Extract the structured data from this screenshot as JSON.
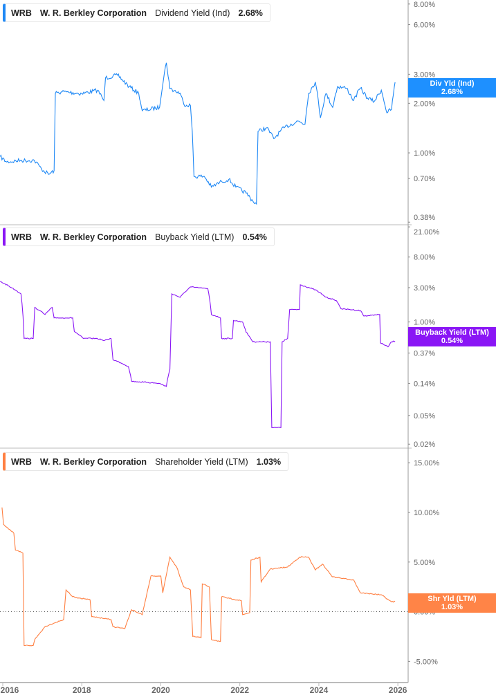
{
  "chart_data": [
    {
      "type": "line",
      "scale": "log",
      "legend": {
        "ticker": "WRB",
        "company": "W. R. Berkley Corporation",
        "metric": "Dividend Yield (Ind)",
        "value": "2.68%"
      },
      "tag": {
        "label": "Div Yld (Ind)",
        "value": "2.68%"
      },
      "color": "#1e88f5",
      "yticks": [
        {
          "v": 8,
          "label": "8.00%"
        },
        {
          "v": 6,
          "label": "6.00%"
        },
        {
          "v": 3,
          "label": "3.00%"
        },
        {
          "v": 2,
          "label": "2.00%"
        },
        {
          "v": 1,
          "label": "1.00%"
        },
        {
          "v": 0.7,
          "label": "0.70%"
        },
        {
          "v": 0.38,
          "label": "0.38%"
        }
      ],
      "ylim": [
        0.37,
        8.3
      ],
      "points": [
        [
          2015.93,
          0.95
        ],
        [
          2016.1,
          0.88
        ],
        [
          2016.45,
          0.9
        ],
        [
          2016.8,
          0.9
        ],
        [
          2016.98,
          0.8
        ],
        [
          2017.16,
          0.74
        ],
        [
          2017.3,
          0.78
        ],
        [
          2017.33,
          2.29
        ],
        [
          2017.5,
          2.35
        ],
        [
          2018.0,
          2.29
        ],
        [
          2018.4,
          2.4
        ],
        [
          2018.56,
          2.08
        ],
        [
          2018.6,
          2.85
        ],
        [
          2018.9,
          2.96
        ],
        [
          2019.2,
          2.52
        ],
        [
          2019.44,
          2.3
        ],
        [
          2019.53,
          1.8
        ],
        [
          2019.97,
          1.89
        ],
        [
          2020.14,
          3.52
        ],
        [
          2020.23,
          2.45
        ],
        [
          2020.49,
          2.3
        ],
        [
          2020.58,
          1.98
        ],
        [
          2020.75,
          1.94
        ],
        [
          2020.84,
          0.72
        ],
        [
          2021.1,
          0.72
        ],
        [
          2021.28,
          0.62
        ],
        [
          2021.54,
          0.67
        ],
        [
          2021.72,
          0.69
        ],
        [
          2021.9,
          0.62
        ],
        [
          2022.16,
          0.57
        ],
        [
          2022.33,
          0.51
        ],
        [
          2022.42,
          0.49
        ],
        [
          2022.46,
          1.35
        ],
        [
          2022.68,
          1.42
        ],
        [
          2022.86,
          1.22
        ],
        [
          2023.12,
          1.42
        ],
        [
          2023.47,
          1.56
        ],
        [
          2023.65,
          1.49
        ],
        [
          2023.74,
          2.29
        ],
        [
          2023.91,
          2.69
        ],
        [
          2024.04,
          1.63
        ],
        [
          2024.18,
          2.29
        ],
        [
          2024.35,
          1.89
        ],
        [
          2024.47,
          2.52
        ],
        [
          2024.7,
          2.47
        ],
        [
          2024.88,
          2.08
        ],
        [
          2025.05,
          2.47
        ],
        [
          2025.23,
          2.15
        ],
        [
          2025.4,
          2.05
        ],
        [
          2025.58,
          2.4
        ],
        [
          2025.72,
          1.75
        ],
        [
          2025.84,
          1.84
        ],
        [
          2025.93,
          2.68
        ]
      ]
    },
    {
      "type": "line",
      "scale": "log",
      "legend": {
        "ticker": "WRB",
        "company": "W. R. Berkley Corporation",
        "metric": "Buyback Yield (LTM)",
        "value": "0.54%"
      },
      "tag": {
        "label": "Buyback Yield (LTM)",
        "value": "0.54%"
      },
      "color": "#8a16f5",
      "yticks": [
        {
          "v": 21,
          "label": "21.00%"
        },
        {
          "v": 8,
          "label": "8.00%"
        },
        {
          "v": 3,
          "label": "3.00%"
        },
        {
          "v": 1,
          "label": "1.00%"
        },
        {
          "v": 0.37,
          "label": "0.37%"
        },
        {
          "v": 0.14,
          "label": "0.14%"
        },
        {
          "v": 0.05,
          "label": "0.05%"
        },
        {
          "v": 0.02,
          "label": "0.02%"
        }
      ],
      "ylim": [
        0.018,
        22
      ],
      "points": [
        [
          2015.93,
          3.66
        ],
        [
          2016.46,
          2.46
        ],
        [
          2016.54,
          0.59
        ],
        [
          2016.77,
          0.59
        ],
        [
          2016.81,
          1.59
        ],
        [
          2017.07,
          1.27
        ],
        [
          2017.25,
          1.59
        ],
        [
          2017.3,
          1.14
        ],
        [
          2017.77,
          1.14
        ],
        [
          2017.81,
          0.74
        ],
        [
          2018.04,
          0.59
        ],
        [
          2018.39,
          0.59
        ],
        [
          2018.56,
          0.55
        ],
        [
          2018.74,
          0.59
        ],
        [
          2018.79,
          0.3
        ],
        [
          2019.18,
          0.24
        ],
        [
          2019.26,
          0.15
        ],
        [
          2019.96,
          0.14
        ],
        [
          2020.14,
          0.127
        ],
        [
          2020.23,
          0.22
        ],
        [
          2020.28,
          2.46
        ],
        [
          2020.49,
          2.2
        ],
        [
          2020.75,
          3.07
        ],
        [
          2021.19,
          2.9
        ],
        [
          2021.28,
          1.27
        ],
        [
          2021.51,
          1.14
        ],
        [
          2021.54,
          0.59
        ],
        [
          2021.81,
          0.59
        ],
        [
          2021.84,
          1.05
        ],
        [
          2022.07,
          1.0
        ],
        [
          2022.16,
          0.72
        ],
        [
          2022.33,
          0.53
        ],
        [
          2022.77,
          0.53
        ],
        [
          2022.81,
          0.034
        ],
        [
          2023.04,
          0.034
        ],
        [
          2023.07,
          0.53
        ],
        [
          2023.21,
          0.59
        ],
        [
          2023.26,
          1.49
        ],
        [
          2023.51,
          1.49
        ],
        [
          2023.53,
          3.28
        ],
        [
          2023.91,
          2.8
        ],
        [
          2024.18,
          2.21
        ],
        [
          2024.44,
          1.99
        ],
        [
          2024.56,
          1.53
        ],
        [
          2025.05,
          1.44
        ],
        [
          2025.14,
          1.21
        ],
        [
          2025.54,
          1.27
        ],
        [
          2025.56,
          0.51
        ],
        [
          2025.75,
          0.45
        ],
        [
          2025.84,
          0.53
        ],
        [
          2025.93,
          0.54
        ]
      ]
    },
    {
      "type": "line",
      "scale": "linear",
      "legend": {
        "ticker": "WRB",
        "company": "W. R. Berkley Corporation",
        "metric": "Shareholder Yield (LTM)",
        "value": "1.03%"
      },
      "tag": {
        "label": "Shr Yld (LTM)",
        "value": "1.03%"
      },
      "color": "#ff7f41",
      "yticks": [
        {
          "v": 15,
          "label": "15.00%"
        },
        {
          "v": 10,
          "label": "10.00%"
        },
        {
          "v": 5,
          "label": "5.00%"
        },
        {
          "v": 0,
          "label": "0.00%"
        },
        {
          "v": -5,
          "label": "-5.00%"
        }
      ],
      "ylim": [
        -6.3,
        15.5
      ],
      "points": [
        [
          2015.98,
          10.5
        ],
        [
          2016.02,
          8.8
        ],
        [
          2016.28,
          7.9
        ],
        [
          2016.32,
          6.2
        ],
        [
          2016.51,
          5.9
        ],
        [
          2016.54,
          -3.4
        ],
        [
          2016.77,
          -3.4
        ],
        [
          2016.81,
          -2.8
        ],
        [
          2017.07,
          -1.5
        ],
        [
          2017.33,
          -1.1
        ],
        [
          2017.54,
          -0.8
        ],
        [
          2017.6,
          2.2
        ],
        [
          2017.77,
          1.5
        ],
        [
          2018.21,
          1.2
        ],
        [
          2018.25,
          -0.5
        ],
        [
          2018.74,
          -0.8
        ],
        [
          2018.79,
          -1.5
        ],
        [
          2019.09,
          -1.7
        ],
        [
          2019.26,
          0.2
        ],
        [
          2019.53,
          -0.3
        ],
        [
          2019.75,
          3.6
        ],
        [
          2020.0,
          3.6
        ],
        [
          2020.05,
          1.9
        ],
        [
          2020.23,
          5.5
        ],
        [
          2020.4,
          4.5
        ],
        [
          2020.58,
          2.5
        ],
        [
          2020.75,
          2.2
        ],
        [
          2020.81,
          -2.5
        ],
        [
          2021.02,
          -2.6
        ],
        [
          2021.05,
          2.8
        ],
        [
          2021.23,
          2.5
        ],
        [
          2021.28,
          -2.8
        ],
        [
          2021.51,
          -3.0
        ],
        [
          2021.54,
          1.5
        ],
        [
          2022.04,
          1.1
        ],
        [
          2022.07,
          -0.3
        ],
        [
          2022.25,
          -0.1
        ],
        [
          2022.28,
          5.2
        ],
        [
          2022.51,
          5.5
        ],
        [
          2022.54,
          3.0
        ],
        [
          2022.77,
          4.3
        ],
        [
          2023.21,
          4.5
        ],
        [
          2023.51,
          5.5
        ],
        [
          2023.74,
          5.5
        ],
        [
          2023.91,
          4.2
        ],
        [
          2024.09,
          4.8
        ],
        [
          2024.35,
          3.5
        ],
        [
          2024.88,
          3.2
        ],
        [
          2025.05,
          1.9
        ],
        [
          2025.58,
          1.7
        ],
        [
          2025.84,
          1.0
        ],
        [
          2025.93,
          1.03
        ]
      ]
    }
  ],
  "xaxis": {
    "ticks": [
      {
        "v": 2016,
        "label": "2016"
      },
      {
        "v": 2018,
        "label": "2018"
      },
      {
        "v": 2020,
        "label": "2020"
      },
      {
        "v": 2022,
        "label": "2022"
      },
      {
        "v": 2024,
        "label": "2024"
      },
      {
        "v": 2026,
        "label": "2026"
      }
    ],
    "xlim": [
      2015.93,
      2026.05
    ]
  }
}
